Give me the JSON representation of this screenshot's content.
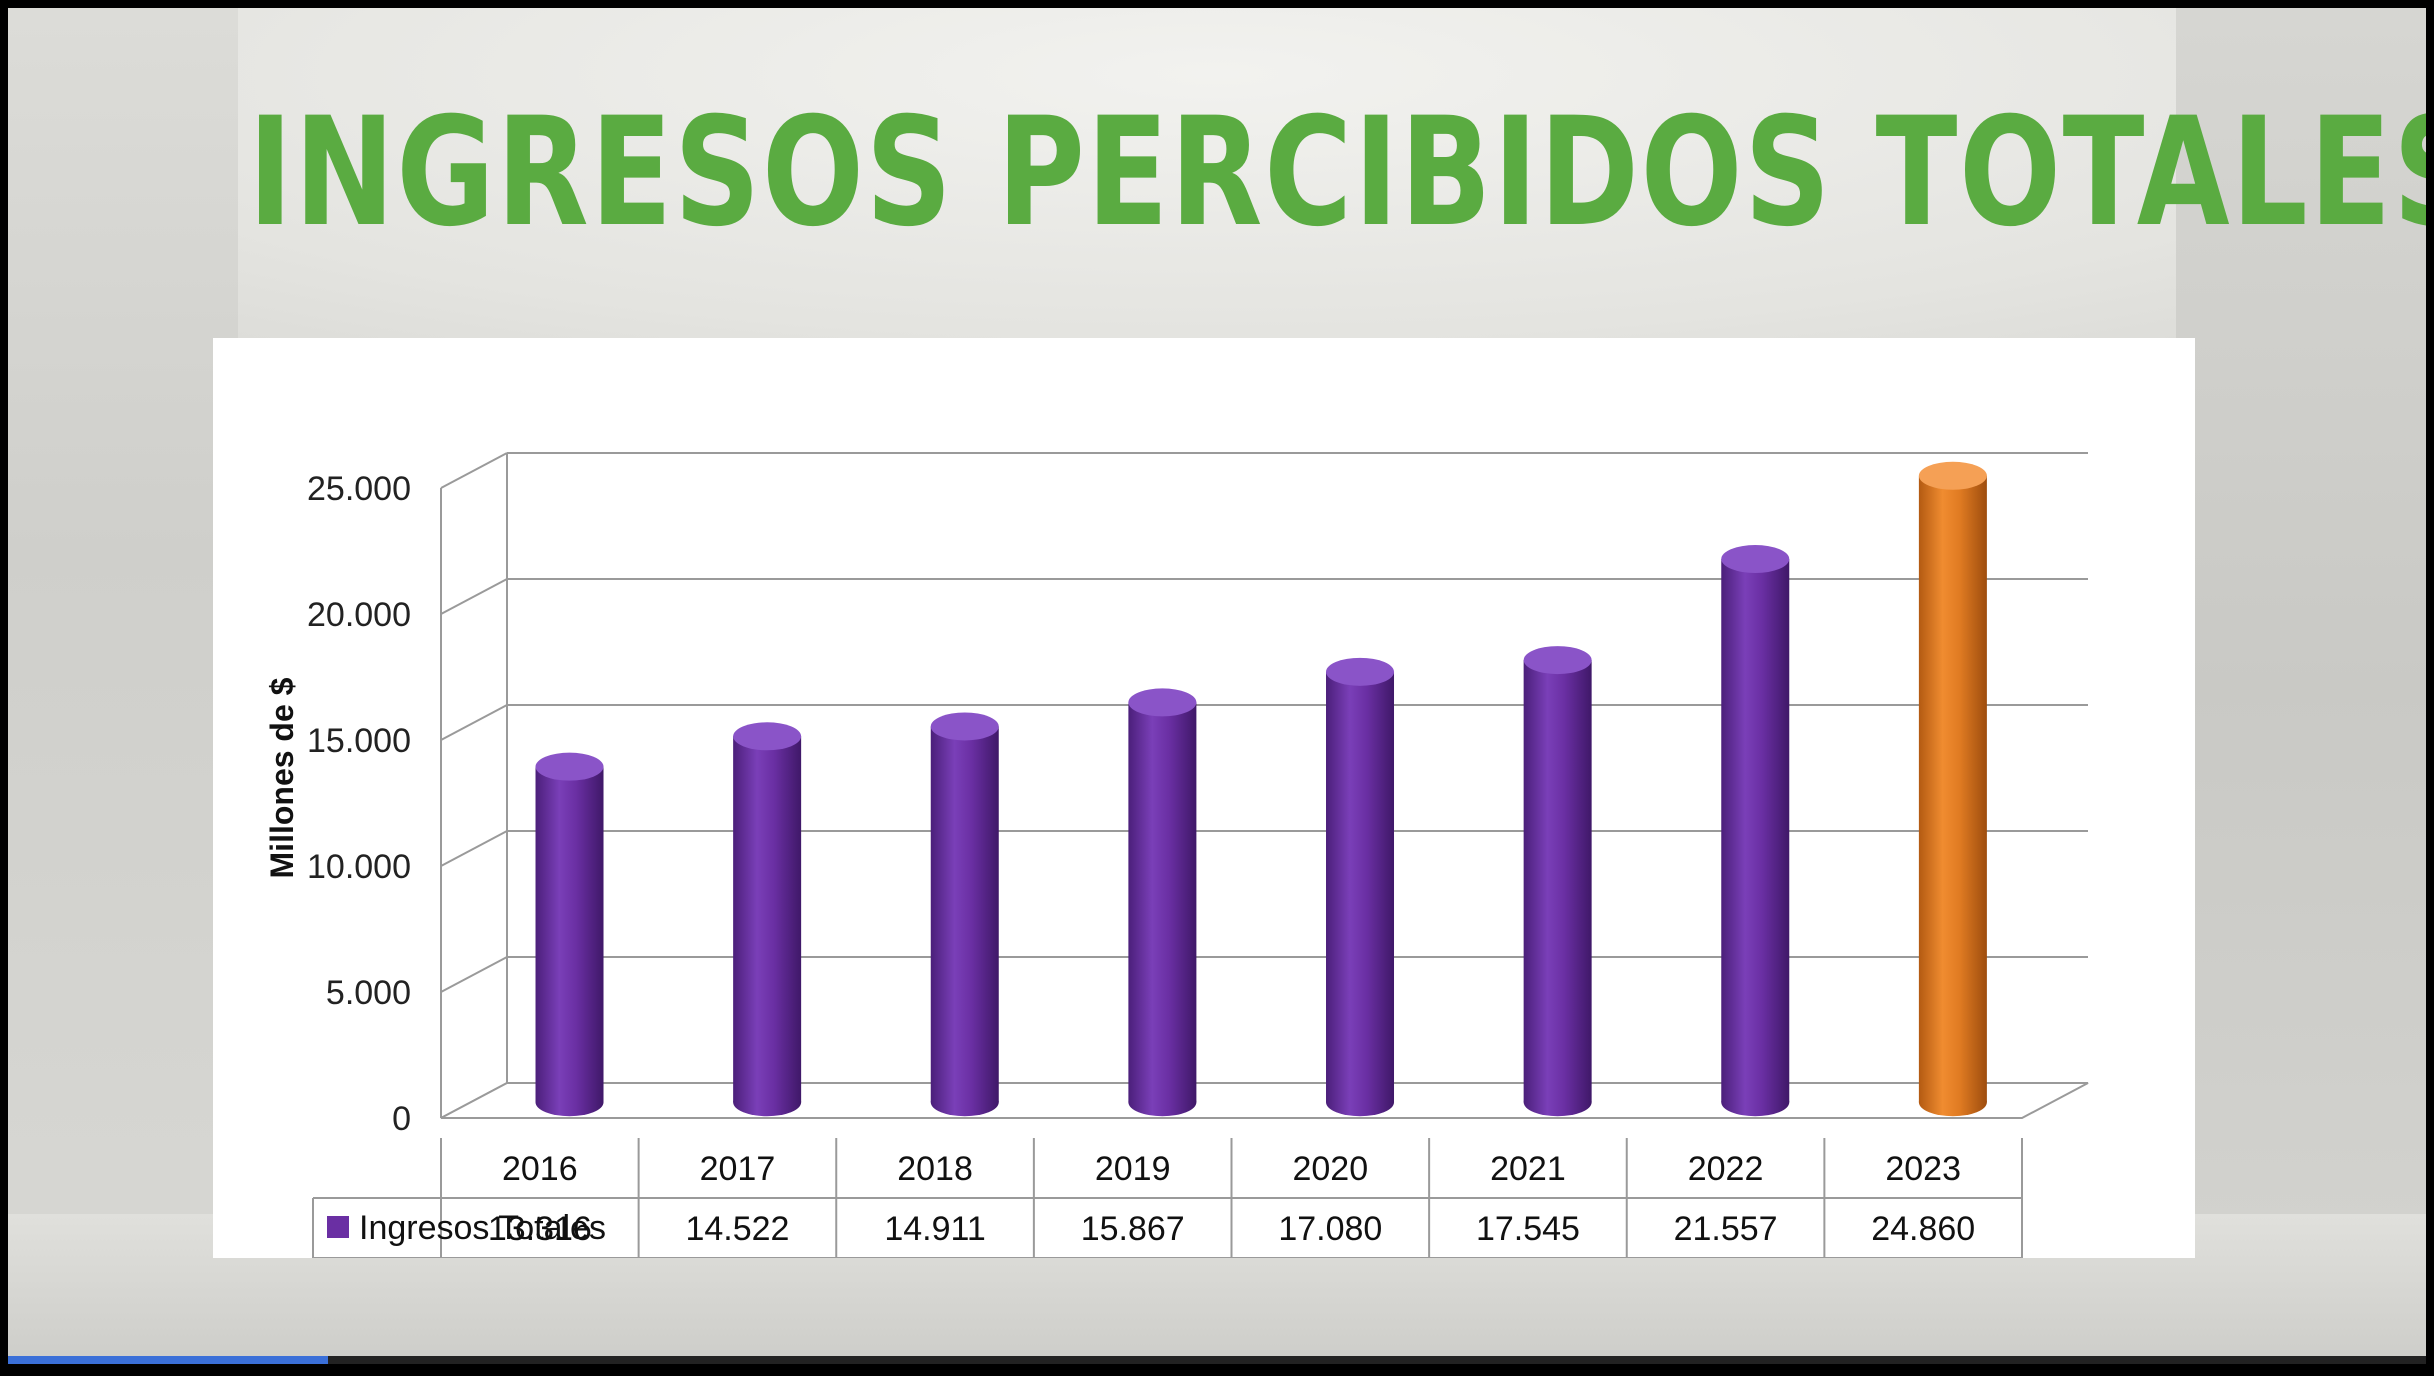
{
  "slide": {
    "title": "INGRESOS PERCIBIDOS TOTALES"
  },
  "colors": {
    "title": "#5aab41",
    "bar_default": "#6a2fa3",
    "bar_highlight": "#e07b22"
  },
  "chart_data": {
    "type": "bar",
    "categories": [
      "2016",
      "2017",
      "2018",
      "2019",
      "2020",
      "2021",
      "2022",
      "2023"
    ],
    "series": [
      {
        "name": "Ingresos Totales",
        "values": [
          13316,
          14522,
          14911,
          15867,
          17080,
          17545,
          21557,
          24860
        ],
        "value_labels": [
          "13.316",
          "14.522",
          "14.911",
          "15.867",
          "17.080",
          "17.545",
          "21.557",
          "24.860"
        ]
      }
    ],
    "highlight_category": "2023",
    "ylabel": "Millones de $",
    "ylim": [
      0,
      25000
    ],
    "yticks": [
      0,
      5000,
      10000,
      15000,
      20000,
      25000
    ],
    "ytick_labels": [
      "0",
      "5.000",
      "10.000",
      "15.000",
      "20.000",
      "25.000"
    ],
    "grid": true,
    "legend": "data-table-below"
  }
}
